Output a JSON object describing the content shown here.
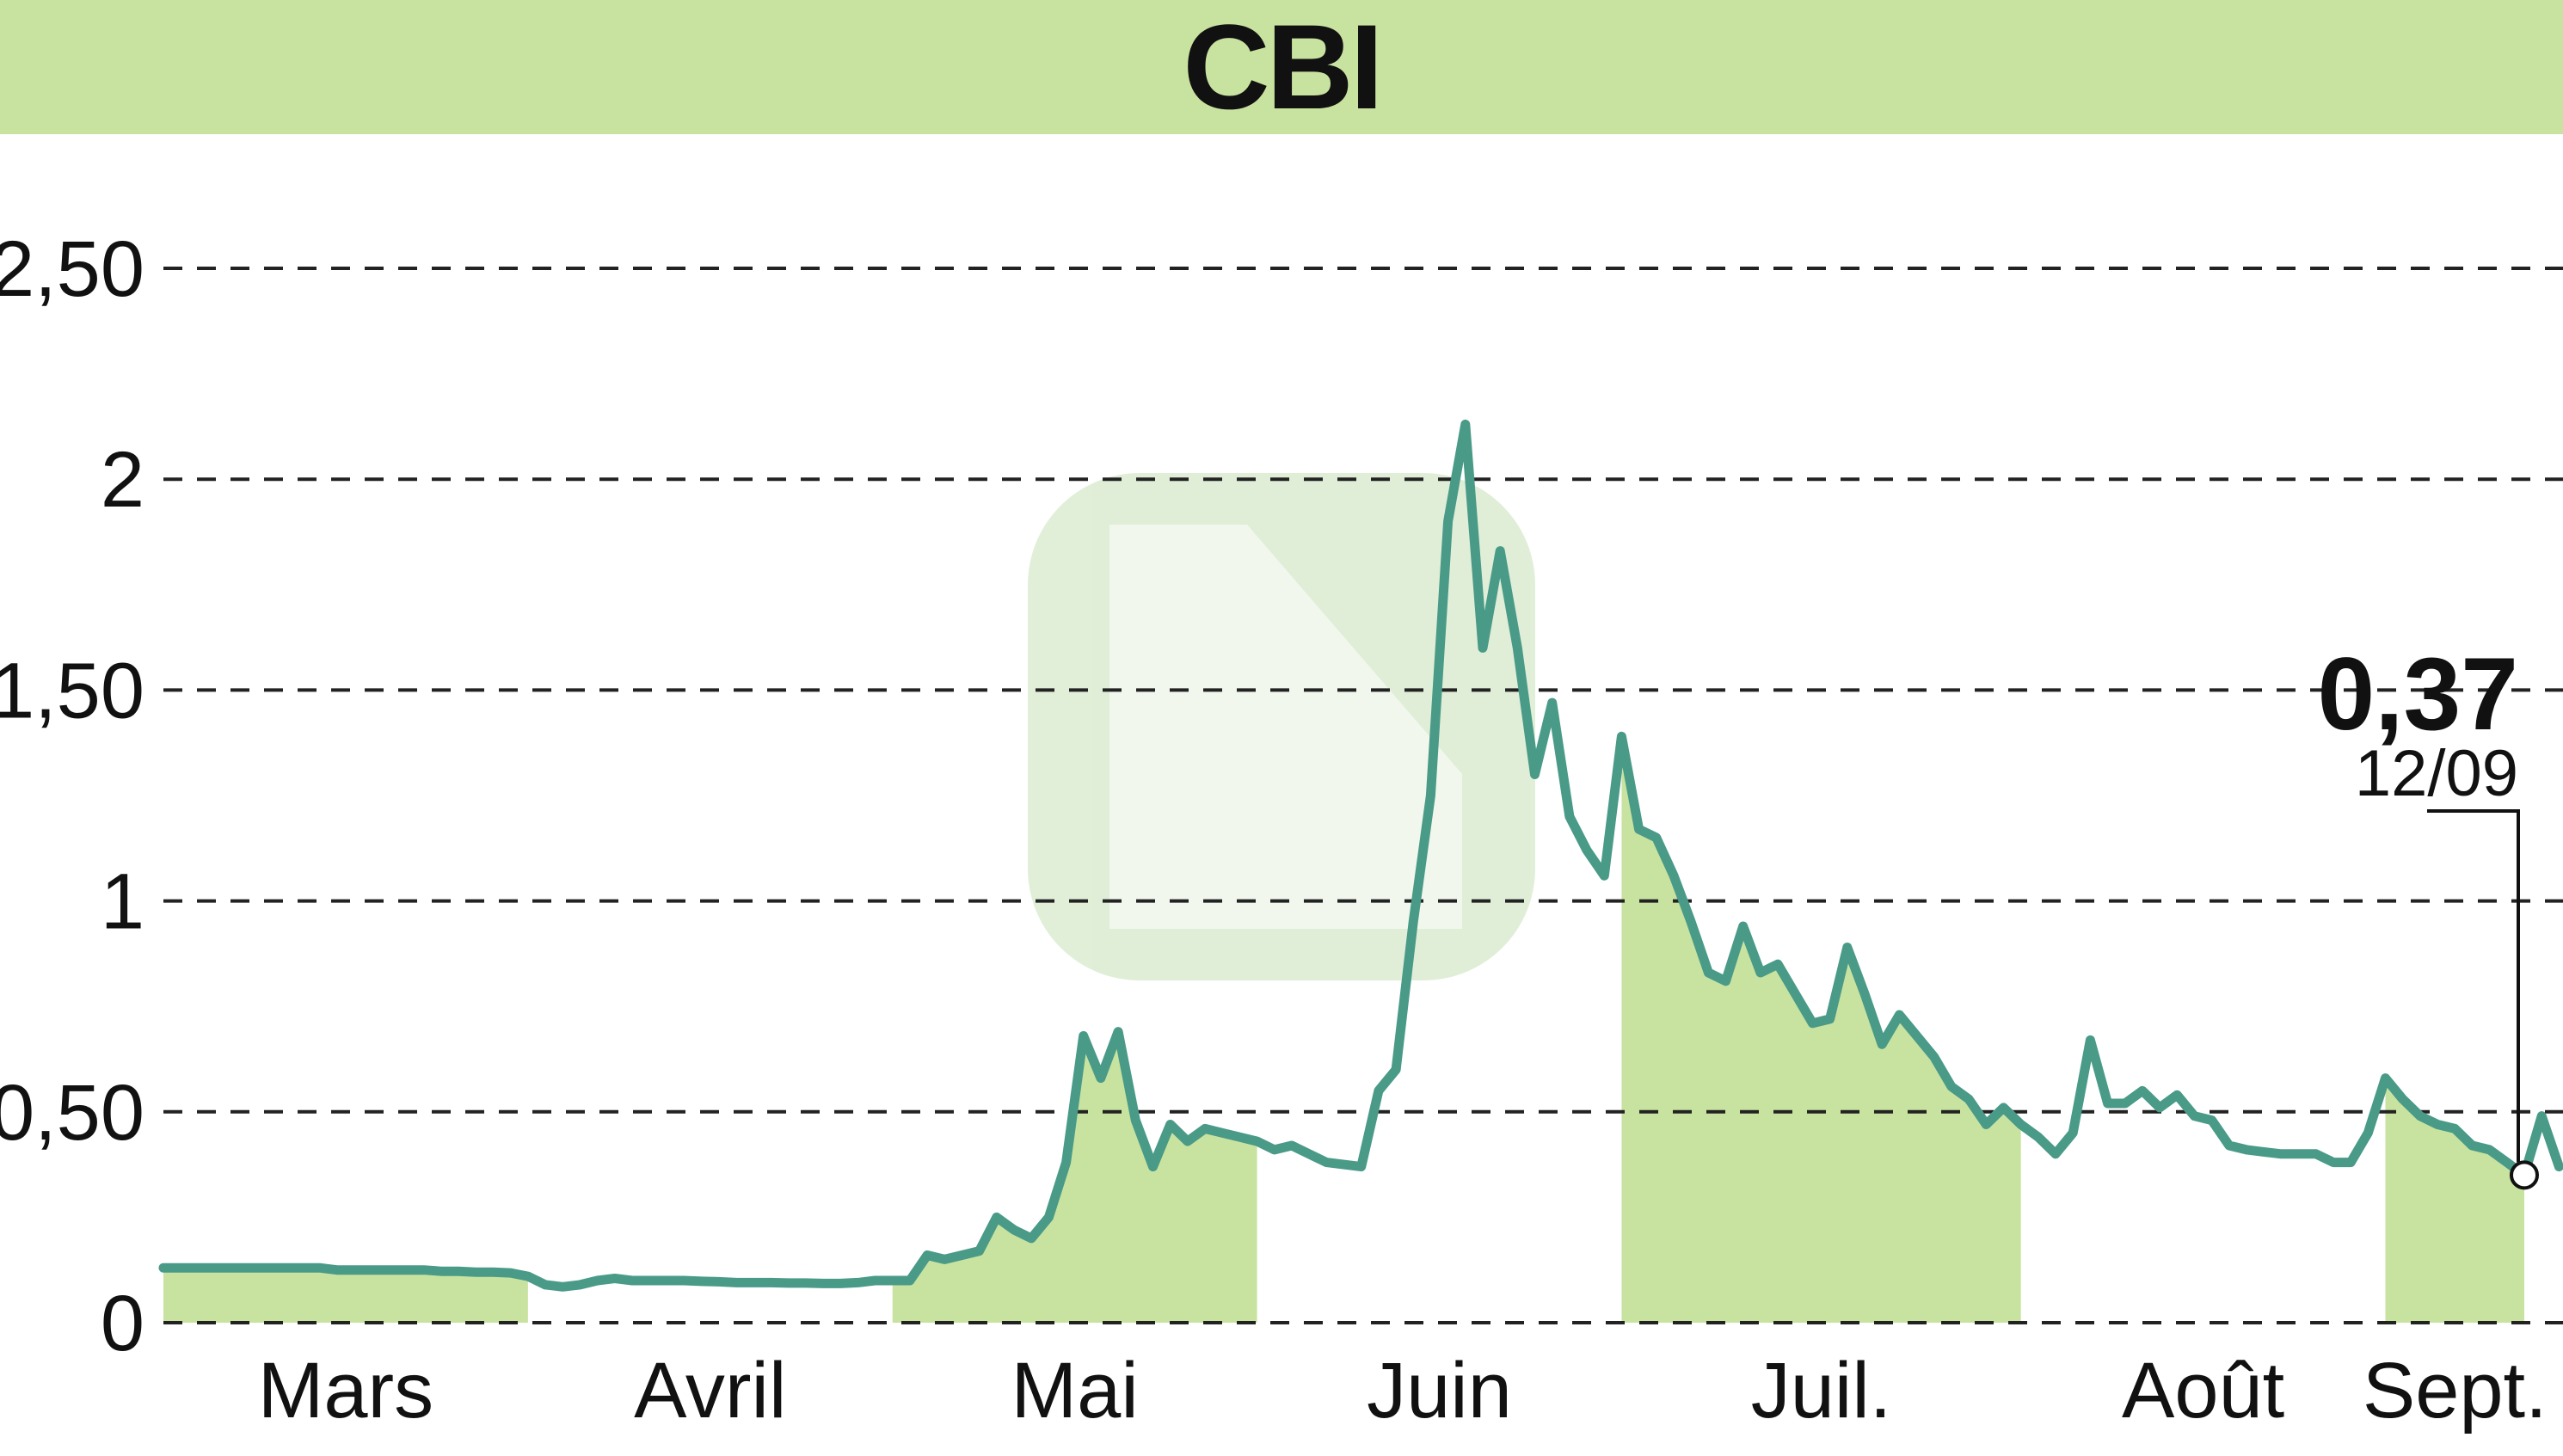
{
  "title": "CBI",
  "colors": {
    "header_bg": "#c8e3a0",
    "month_band": "#c8e3a0",
    "line": "#4a9a88",
    "grid": "#222222",
    "text": "#111111"
  },
  "last_value": {
    "value": "0,37",
    "date": "12/09"
  },
  "chart_data": {
    "type": "line",
    "title": "CBI",
    "xlabel": "",
    "ylabel": "",
    "ylim": [
      0,
      2.5
    ],
    "grid": "horizontal dashed",
    "y_ticks": [
      {
        "value": 0,
        "label": "0"
      },
      {
        "value": 0.5,
        "label": "0,50"
      },
      {
        "value": 1,
        "label": "1"
      },
      {
        "value": 1.5,
        "label": "1,50"
      },
      {
        "value": 2,
        "label": "2"
      },
      {
        "value": 2.5,
        "label": "2,50"
      }
    ],
    "months": [
      {
        "label": "Mars",
        "start": 0,
        "end": 21,
        "shaded": true
      },
      {
        "label": "Avril",
        "start": 21,
        "end": 42,
        "shaded": false
      },
      {
        "label": "Mai",
        "start": 42,
        "end": 63,
        "shaded": true
      },
      {
        "label": "Juin",
        "start": 63,
        "end": 84,
        "shaded": false
      },
      {
        "label": "Juil.",
        "start": 84,
        "end": 107,
        "shaded": true
      },
      {
        "label": "Août",
        "start": 107,
        "end": 128,
        "shaded": false
      },
      {
        "label": "Sept.",
        "start": 128,
        "end": 137,
        "shaded": true
      }
    ],
    "x_count": 137,
    "series": [
      {
        "values": [
          0.13,
          0.13,
          0.13,
          0.13,
          0.13,
          0.13,
          0.13,
          0.13,
          0.13,
          0.13,
          0.125,
          0.125,
          0.125,
          0.125,
          0.125,
          0.125,
          0.122,
          0.122,
          0.12,
          0.12,
          0.118,
          0.11,
          0.09,
          0.085,
          0.09,
          0.1,
          0.105,
          0.1,
          0.1,
          0.1,
          0.1,
          0.098,
          0.097,
          0.095,
          0.095,
          0.095,
          0.094,
          0.094,
          0.093,
          0.093,
          0.095,
          0.1,
          0.1,
          0.1,
          0.16,
          0.15,
          0.16,
          0.17,
          0.25,
          0.22,
          0.2,
          0.25,
          0.38,
          0.68,
          0.58,
          0.69,
          0.48,
          0.37,
          0.47,
          0.43,
          0.46,
          0.45,
          0.44,
          0.43,
          0.41,
          0.42,
          0.4,
          0.38,
          0.375,
          0.37,
          0.55,
          0.6,
          0.95,
          1.25,
          1.9,
          2.13,
          1.6,
          1.83,
          1.6,
          1.3,
          1.47,
          1.2,
          1.12,
          1.06,
          1.39,
          1.17,
          1.15,
          1.06,
          0.95,
          0.83,
          0.81,
          0.94,
          0.83,
          0.85,
          0.78,
          0.71,
          0.72,
          0.89,
          0.78,
          0.66,
          0.73,
          0.68,
          0.63,
          0.56,
          0.53,
          0.47,
          0.51,
          0.47,
          0.44,
          0.4,
          0.45,
          0.67,
          0.52,
          0.52,
          0.55,
          0.51,
          0.54,
          0.49,
          0.48,
          0.42,
          0.41,
          0.405,
          0.4,
          0.4,
          0.4,
          0.38,
          0.38,
          0.45,
          0.58,
          0.53,
          0.49,
          0.47,
          0.46,
          0.42,
          0.41,
          0.38,
          0.35,
          0.49,
          0.37
        ]
      }
    ]
  }
}
